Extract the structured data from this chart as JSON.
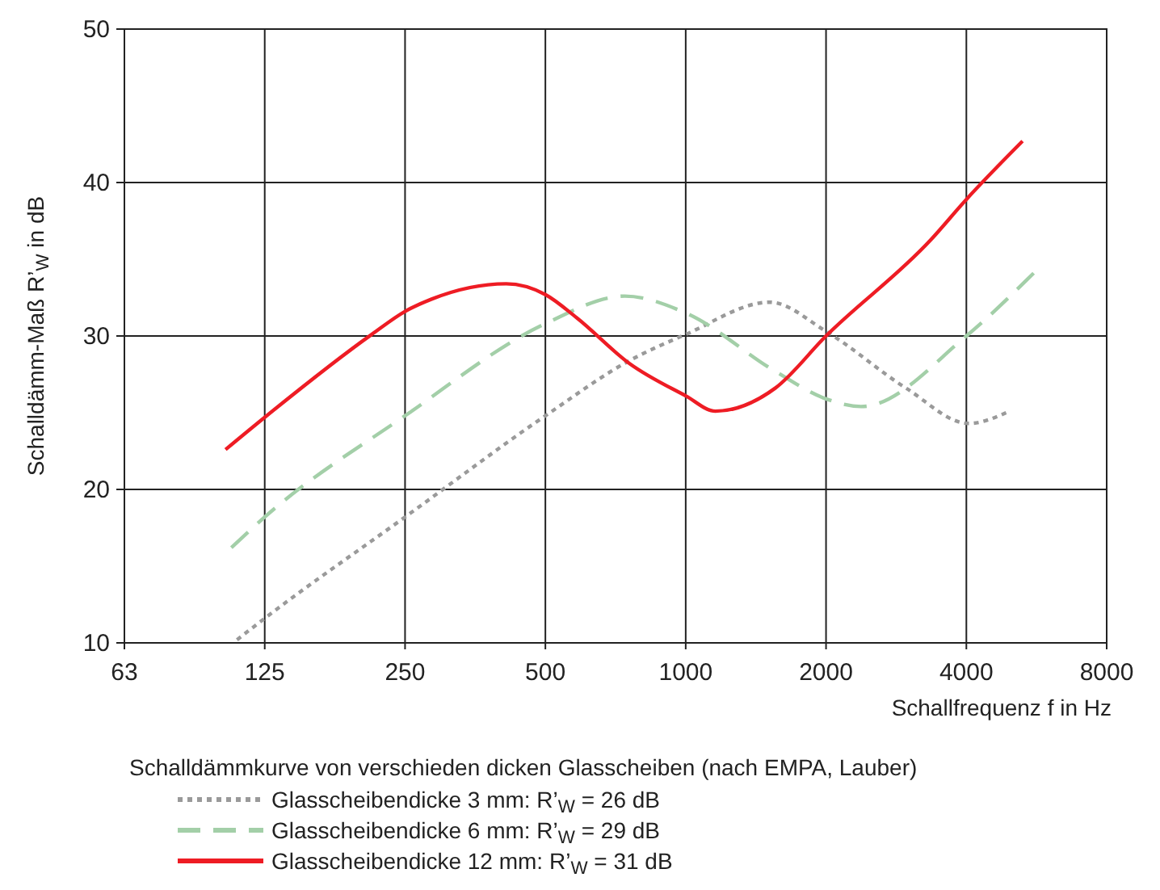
{
  "chart_data": {
    "type": "line",
    "ylabel": "Schalldämm-Maß R’$_{W}$ in dB",
    "xlabel": "Schallfrequenz f in Hz",
    "legend_title": "Schalldämmkurve von verschieden dicken Glasscheiben (nach EMPA, Lauber)",
    "log": "x",
    "xlim": [
      62.5,
      8000
    ],
    "xticks": [
      {
        "value": 62.5,
        "label": "63"
      },
      125,
      250,
      500,
      1000,
      2000,
      4000,
      8000
    ],
    "ylim": [
      10,
      50
    ],
    "yticks": [
      10,
      20,
      30,
      40,
      50
    ],
    "grid": true,
    "legend": "bottom",
    "marker": "none",
    "series": [
      {
        "name": "Glasscheibendicke  3 mm: R’$_{W}$ = 26 dB",
        "color": "#9a9a9a",
        "line_style": "dotted",
        "x": [
          109,
          125,
          250,
          500,
          758,
          1000,
          1515,
          2000,
          2970,
          4050,
          4870
        ],
        "values": [
          10.2,
          11.6,
          18.2,
          24.8,
          28.4,
          30.1,
          32.2,
          30.3,
          26.6,
          24.3,
          25.0
        ]
      },
      {
        "name": "Glasscheibendicke  6 mm: R’$_{W}$ = 29 dB",
        "color": "#a3cfa8",
        "line_style": "dashed",
        "x": [
          106,
          125,
          250,
          500,
          740,
          1000,
          1556,
          2000,
          2378,
          4000,
          5580
        ],
        "values": [
          16.2,
          18.2,
          24.8,
          30.8,
          32.6,
          31.5,
          27.7,
          25.9,
          25.4,
          30.0,
          34.1
        ]
      },
      {
        "name": "Glasscheibendicke  12 mm: R’$_{W}$ = 31 dB",
        "color": "#ee1c24",
        "line_style": "solid",
        "x": [
          103,
          125,
          212,
          250,
          285,
          412,
          500,
          583,
          758,
          1000,
          1158,
          1556,
          2000,
          3364,
          4000,
          5280
        ],
        "values": [
          22.6,
          24.7,
          30.1,
          31.6,
          32.4,
          33.4,
          32.7,
          31.2,
          28.2,
          26.1,
          25.1,
          26.6,
          30.0,
          36.3,
          38.9,
          42.7
        ]
      }
    ]
  }
}
